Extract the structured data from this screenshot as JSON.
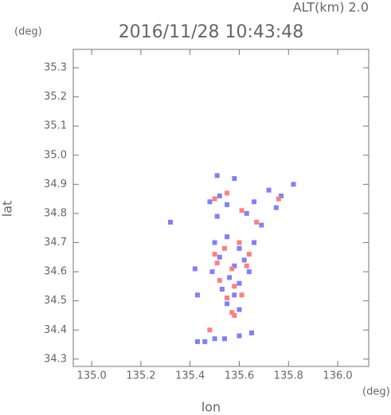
{
  "chart_data": {
    "type": "scatter",
    "title": "2016/11/28 10:43:48",
    "subtitle": "ALT(km) 2.0",
    "y_unit": "(deg)",
    "x_unit": "(deg)",
    "x_label": "lon",
    "y_label": "lat",
    "xlim": [
      134.925,
      136.126
    ],
    "ylim": [
      34.275,
      35.363
    ],
    "xticks": [
      {
        "value": 135.0,
        "label": "135.0"
      },
      135.2,
      135.4,
      135.6,
      135.8,
      {
        "value": 136.0,
        "label": "136.0"
      }
    ],
    "yticks": [
      34.3,
      34.4,
      34.5,
      34.6,
      34.7,
      34.8,
      34.9,
      {
        "value": 35.0,
        "label": "35.0"
      },
      35.1,
      35.2,
      35.3
    ],
    "series": [
      {
        "color": "#7f7fff",
        "x": [
          135.51,
          135.58,
          135.48,
          135.52,
          135.55,
          135.63,
          135.66,
          135.72,
          135.77,
          135.82,
          135.75,
          135.32,
          135.5,
          135.55,
          135.6,
          135.52,
          135.58,
          135.62,
          135.49,
          135.56,
          135.6,
          135.53,
          135.58,
          135.55,
          135.6,
          135.42,
          135.43,
          135.43,
          135.46,
          135.5,
          135.54,
          135.6,
          135.65,
          135.66,
          135.64,
          135.51,
          135.69
        ],
        "values": [
          34.93,
          34.92,
          34.84,
          34.86,
          34.83,
          34.8,
          34.84,
          34.88,
          34.86,
          34.9,
          34.82,
          34.77,
          34.7,
          34.72,
          34.68,
          34.65,
          34.62,
          34.64,
          34.6,
          34.58,
          34.56,
          34.54,
          34.52,
          34.49,
          34.47,
          34.61,
          34.52,
          34.36,
          34.36,
          34.37,
          34.37,
          34.38,
          34.39,
          34.7,
          34.6,
          34.79,
          34.76
        ]
      },
      {
        "color": "#ff7f7f",
        "x": [
          135.5,
          135.55,
          135.61,
          135.76,
          135.67,
          135.54,
          135.6,
          135.51,
          135.57,
          135.63,
          135.52,
          135.58,
          135.55,
          135.61,
          135.57,
          135.5,
          135.64,
          135.48,
          135.58
        ],
        "values": [
          34.85,
          34.87,
          34.81,
          34.85,
          34.77,
          34.68,
          34.7,
          34.63,
          34.61,
          34.62,
          34.57,
          34.55,
          34.51,
          34.52,
          34.46,
          34.66,
          34.66,
          34.4,
          34.45
        ]
      }
    ]
  }
}
